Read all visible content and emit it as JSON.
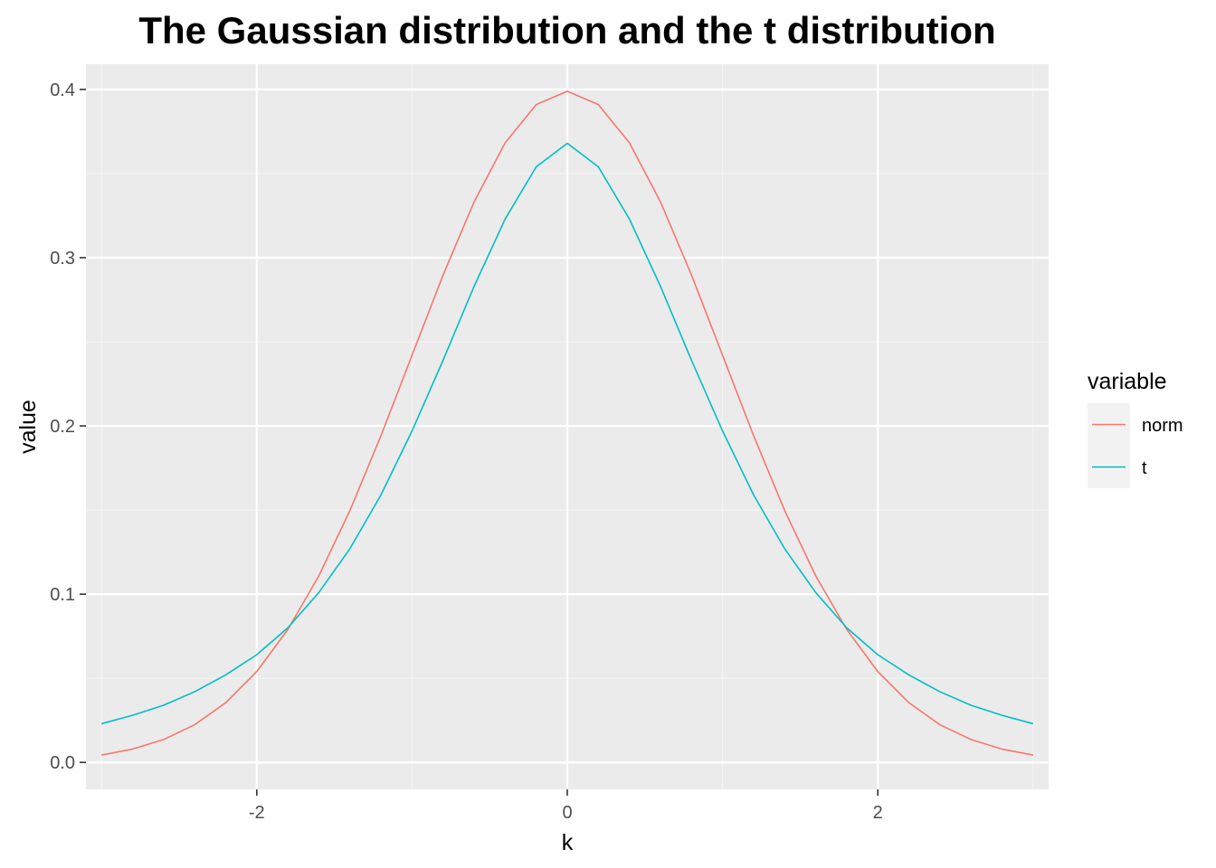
{
  "chart_data": {
    "type": "line",
    "title": "The Gaussian distribution and the t distribution",
    "xlabel": "k",
    "ylabel": "value",
    "xlim": [
      -3.1,
      3.1
    ],
    "ylim": [
      -0.016,
      0.415
    ],
    "x_ticks": [
      -2,
      0,
      2
    ],
    "x_tick_labels": [
      "-2",
      "0",
      "2"
    ],
    "y_ticks": [
      0.0,
      0.1,
      0.2,
      0.3,
      0.4
    ],
    "y_tick_labels": [
      "0.0",
      "0.1",
      "0.2",
      "0.3",
      "0.4"
    ],
    "grid": true,
    "legend": {
      "title": "variable",
      "position": "right"
    },
    "x": [
      -3.0,
      -2.8,
      -2.6,
      -2.4,
      -2.2,
      -2.0,
      -1.8,
      -1.6,
      -1.4,
      -1.2,
      -1.0,
      -0.8,
      -0.6,
      -0.4,
      -0.2,
      0.0,
      0.2,
      0.4,
      0.6,
      0.8,
      1.0,
      1.2,
      1.4,
      1.6,
      1.8,
      2.0,
      2.2,
      2.4,
      2.6,
      2.8,
      3.0
    ],
    "series": [
      {
        "name": "norm",
        "color": "#F8766D",
        "values": [
          0.0044,
          0.0079,
          0.0136,
          0.0224,
          0.0355,
          0.054,
          0.079,
          0.1109,
          0.1497,
          0.1942,
          0.242,
          0.2897,
          0.3332,
          0.3683,
          0.391,
          0.3989,
          0.391,
          0.3683,
          0.3332,
          0.2897,
          0.242,
          0.1942,
          0.1497,
          0.1109,
          0.079,
          0.054,
          0.0355,
          0.0224,
          0.0136,
          0.0079,
          0.0044
        ]
      },
      {
        "name": "t",
        "color": "#00BFC4",
        "values": [
          0.023,
          0.028,
          0.034,
          0.042,
          0.052,
          0.064,
          0.08,
          0.101,
          0.127,
          0.159,
          0.197,
          0.239,
          0.283,
          0.323,
          0.354,
          0.368,
          0.354,
          0.323,
          0.283,
          0.239,
          0.197,
          0.159,
          0.127,
          0.101,
          0.08,
          0.064,
          0.052,
          0.042,
          0.034,
          0.028,
          0.023
        ]
      }
    ]
  },
  "colors": {
    "panel_background": "#EBEBEB",
    "grid_major": "#FFFFFF",
    "grid_minor": "#F5F5F5",
    "tick_color": "#333333",
    "legend_key_background": "#F2F2F2"
  }
}
